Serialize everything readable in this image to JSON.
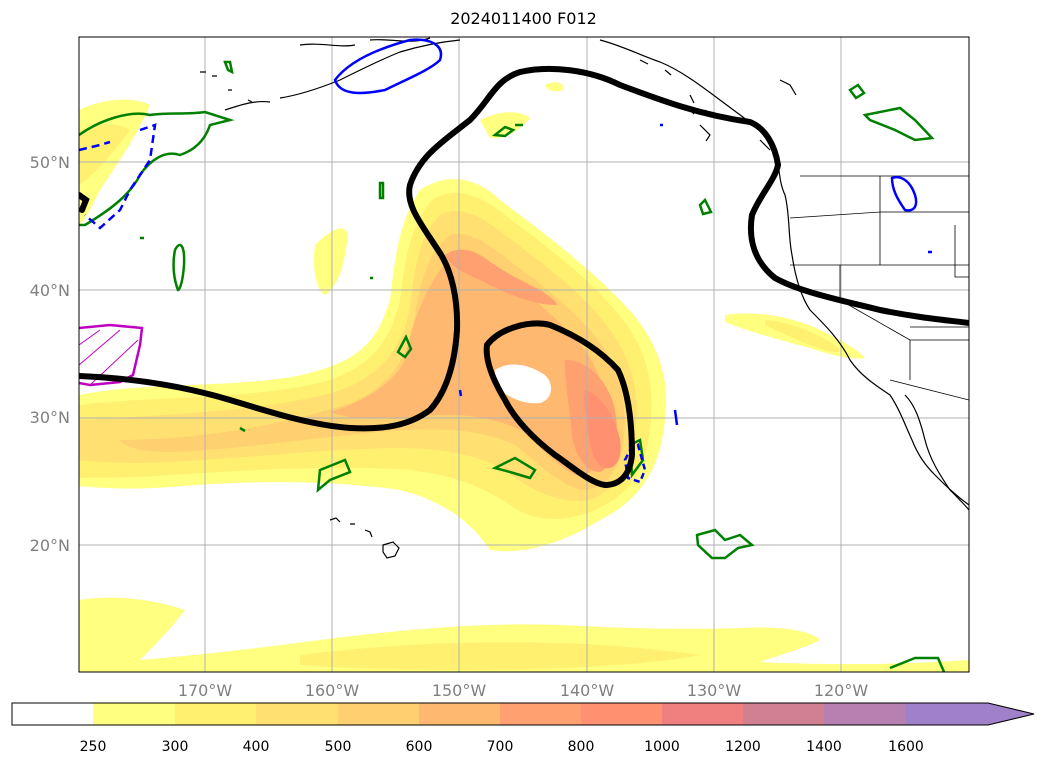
{
  "title": "2024011400 F012",
  "map": {
    "lat_labels": [
      "50°N",
      "40°N",
      "30°N",
      "20°N"
    ],
    "lon_labels": [
      "170°W",
      "160°W",
      "150°W",
      "140°W",
      "130°W",
      "120°W"
    ]
  },
  "colorbar": {
    "labels": [
      "250",
      "300",
      "400",
      "500",
      "600",
      "700",
      "800",
      "1000",
      "1200",
      "1400",
      "1600"
    ],
    "colors": [
      "#ffffff",
      "#ffff80",
      "#fff070",
      "#ffe070",
      "#ffd070",
      "#ffb870",
      "#ffa070",
      "#ff9070",
      "#f08080",
      "#d08090",
      "#b880b0",
      "#a080c8"
    ]
  },
  "legend_colors": {
    "contour_black": "#000000",
    "contour_green": "#008000",
    "contour_blue": "#0000ff",
    "contour_magenta": "#c000c0"
  }
}
